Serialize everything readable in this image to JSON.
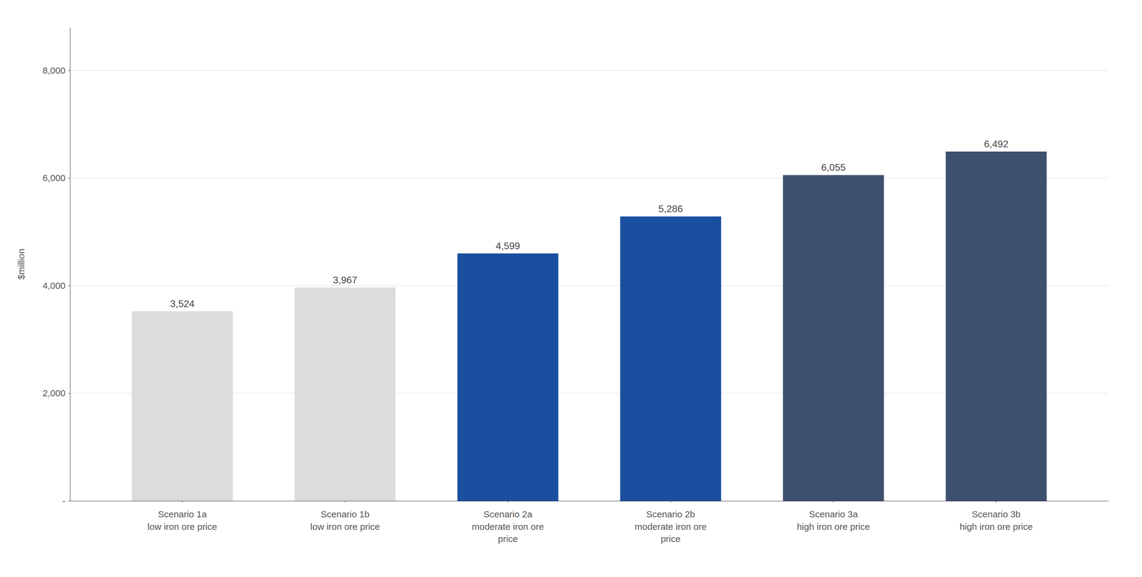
{
  "chart_data": {
    "type": "bar",
    "categories": [
      "Scenario 1a\nlow iron ore price",
      "Scenario 1b\nlow iron ore price",
      "Scenario 2a\nmoderate iron ore\nprice",
      "Scenario 2b\nmoderate iron ore\nprice",
      "Scenario 3a\nhigh iron ore price",
      "Scenario 3b\nhigh iron ore price"
    ],
    "values": [
      3524,
      3967,
      4599,
      5286,
      6055,
      6492
    ],
    "value_labels": [
      "3,524",
      "3,967",
      "4,599",
      "5,286",
      "6,055",
      "6,492"
    ],
    "data_labels": true,
    "colors": [
      "#dcdcdc",
      "#dcdcdc",
      "#1a4fa0",
      "#1a4fa0",
      "#3d506e",
      "#3d506e"
    ],
    "ylabel": "$million",
    "ylim": [
      0,
      8800
    ],
    "yticks": [
      {
        "value": 0,
        "label": "-"
      },
      {
        "value": 2000,
        "label": "2,000"
      },
      {
        "value": 4000,
        "label": "4,000"
      },
      {
        "value": 6000,
        "label": "6,000"
      },
      {
        "value": 8000,
        "label": "8,000"
      }
    ],
    "grid": true
  }
}
